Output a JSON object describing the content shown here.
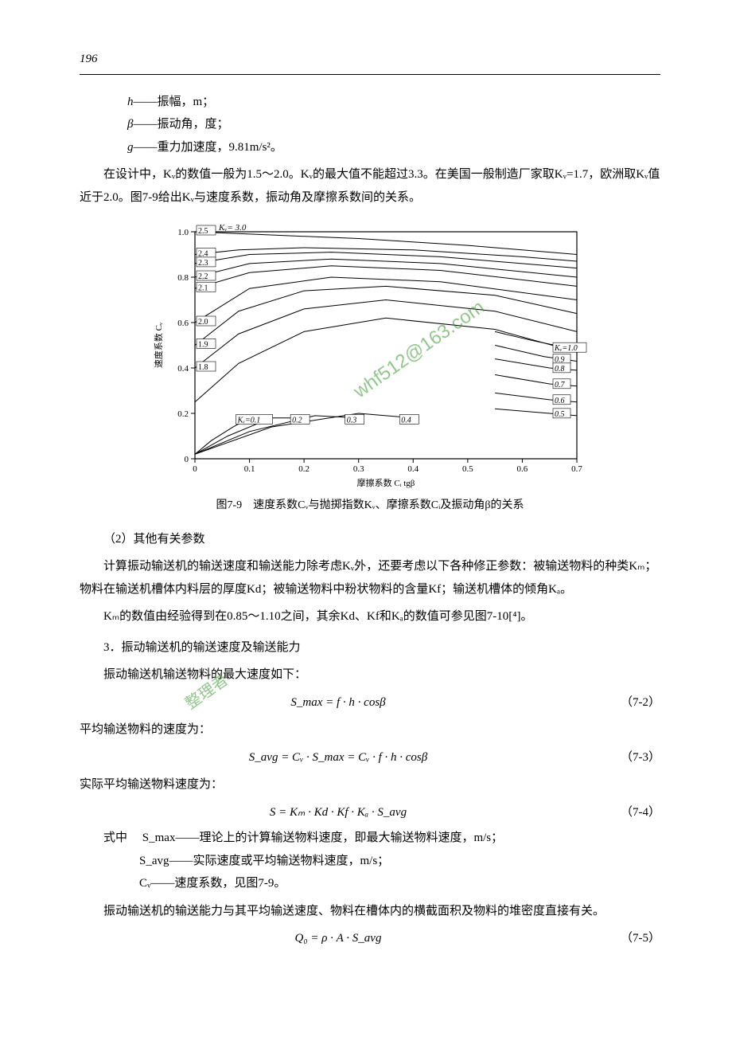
{
  "page_number": "196",
  "definitions": [
    {
      "sym": "h",
      "text": "——振幅，m；"
    },
    {
      "sym": "β",
      "text": "——振动角，度；"
    },
    {
      "sym": "g",
      "text": "——重力加速度，9.81m/s²。"
    }
  ],
  "para1": "在设计中，Kᵥ的数值一般为1.5～2.0。Kᵥ的最大值不能超过3.3。在美国一般制造厂家取Kᵥ=1.7，欧洲取Kᵥ值近于2.0。图7-9给出Kᵥ与速度系数，振动角及摩擦系数间的关系。",
  "figure": {
    "caption": "图7-9　速度系数Cᵥ与抛掷指数Kᵥ、摩擦系数Cᵢ及振动角β的关系",
    "xlabel": "摩擦系数 Cᵢ tgβ",
    "ylabel": "速度系数 Cᵥ",
    "xlim": [
      0,
      0.7
    ],
    "ylim": [
      0,
      1.0
    ],
    "xticks": [
      "0",
      "0.1",
      "0.2",
      "0.3",
      "0.4",
      "0.5",
      "0.6",
      "0.7"
    ],
    "yticks": [
      "0",
      "0.2",
      "0.4",
      "0.6",
      "0.8",
      "1.0"
    ],
    "grid_color": "#000000",
    "line_color": "#000000",
    "background_color": "#ffffff",
    "font_size_axis": 11,
    "font_size_labels": 11,
    "top_label": "Kᵥ= 3.0",
    "left_kv_labels": [
      "2.5",
      "2.4",
      "2.3",
      "2.2",
      "2.1",
      "2.0",
      "1.9",
      "1.8"
    ],
    "bottom_kv_labels": [
      "Kᵥ=0.1",
      "0.2",
      "0.3",
      "0.4"
    ],
    "right_kv_labels": [
      "Kᵥ=1.0",
      "0.9",
      "0.8",
      "0.7",
      "0.6",
      "0.5"
    ],
    "curves_kv": [
      {
        "label": "3.0",
        "pts": [
          [
            0,
            1.0
          ],
          [
            0.1,
            0.99
          ],
          [
            0.3,
            0.97
          ],
          [
            0.5,
            0.94
          ],
          [
            0.7,
            0.9
          ]
        ]
      },
      {
        "label": "2.5",
        "pts": [
          [
            0,
            0.9
          ],
          [
            0.08,
            0.92
          ],
          [
            0.2,
            0.93
          ],
          [
            0.4,
            0.92
          ],
          [
            0.6,
            0.89
          ],
          [
            0.7,
            0.87
          ]
        ]
      },
      {
        "label": "2.4",
        "pts": [
          [
            0,
            0.86
          ],
          [
            0.1,
            0.9
          ],
          [
            0.25,
            0.91
          ],
          [
            0.45,
            0.89
          ],
          [
            0.7,
            0.84
          ]
        ]
      },
      {
        "label": "2.3",
        "pts": [
          [
            0,
            0.8
          ],
          [
            0.1,
            0.86
          ],
          [
            0.25,
            0.88
          ],
          [
            0.45,
            0.86
          ],
          [
            0.7,
            0.8
          ]
        ]
      },
      {
        "label": "2.2",
        "pts": [
          [
            0,
            0.75
          ],
          [
            0.1,
            0.82
          ],
          [
            0.25,
            0.85
          ],
          [
            0.45,
            0.83
          ],
          [
            0.7,
            0.76
          ]
        ]
      },
      {
        "label": "2.1",
        "pts": [
          [
            0,
            0.6
          ],
          [
            0.1,
            0.75
          ],
          [
            0.25,
            0.8
          ],
          [
            0.45,
            0.78
          ],
          [
            0.7,
            0.7
          ]
        ]
      },
      {
        "label": "2.0",
        "pts": [
          [
            0,
            0.5
          ],
          [
            0.08,
            0.65
          ],
          [
            0.2,
            0.74
          ],
          [
            0.35,
            0.76
          ],
          [
            0.55,
            0.72
          ],
          [
            0.7,
            0.64
          ]
        ]
      },
      {
        "label": "1.9",
        "pts": [
          [
            0,
            0.4
          ],
          [
            0.08,
            0.55
          ],
          [
            0.2,
            0.66
          ],
          [
            0.35,
            0.7
          ],
          [
            0.55,
            0.65
          ],
          [
            0.7,
            0.56
          ]
        ]
      },
      {
        "label": "1.8",
        "pts": [
          [
            0,
            0.25
          ],
          [
            0.08,
            0.42
          ],
          [
            0.2,
            0.56
          ],
          [
            0.35,
            0.62
          ],
          [
            0.55,
            0.57
          ],
          [
            0.7,
            0.47
          ]
        ]
      }
    ],
    "curves_bottom": [
      {
        "label": "0.1",
        "pts": [
          [
            0,
            0.02
          ],
          [
            0.03,
            0.08
          ],
          [
            0.07,
            0.14
          ],
          [
            0.1,
            0.18
          ]
        ]
      },
      {
        "label": "0.2",
        "pts": [
          [
            0,
            0.02
          ],
          [
            0.06,
            0.1
          ],
          [
            0.14,
            0.18
          ],
          [
            0.2,
            0.18
          ]
        ]
      },
      {
        "label": "0.3",
        "pts": [
          [
            0,
            0.02
          ],
          [
            0.1,
            0.12
          ],
          [
            0.22,
            0.19
          ],
          [
            0.3,
            0.18
          ]
        ]
      },
      {
        "label": "0.4",
        "pts": [
          [
            0,
            0.02
          ],
          [
            0.14,
            0.14
          ],
          [
            0.3,
            0.2
          ],
          [
            0.4,
            0.18
          ]
        ]
      }
    ],
    "curves_right": [
      {
        "label": "1.0",
        "pts": [
          [
            0.55,
            0.56
          ],
          [
            0.62,
            0.52
          ],
          [
            0.7,
            0.48
          ]
        ]
      },
      {
        "label": "0.9",
        "pts": [
          [
            0.55,
            0.5
          ],
          [
            0.64,
            0.45
          ],
          [
            0.7,
            0.43
          ]
        ]
      },
      {
        "label": "0.8",
        "pts": [
          [
            0.55,
            0.44
          ],
          [
            0.65,
            0.4
          ],
          [
            0.7,
            0.39
          ]
        ]
      },
      {
        "label": "0.7",
        "pts": [
          [
            0.55,
            0.37
          ],
          [
            0.65,
            0.33
          ],
          [
            0.7,
            0.32
          ]
        ]
      },
      {
        "label": "0.6",
        "pts": [
          [
            0.55,
            0.29
          ],
          [
            0.65,
            0.26
          ],
          [
            0.7,
            0.25
          ]
        ]
      },
      {
        "label": "0.5",
        "pts": [
          [
            0.55,
            0.22
          ],
          [
            0.65,
            0.2
          ],
          [
            0.7,
            0.19
          ]
        ]
      }
    ]
  },
  "sec2_h": "（2）其他有关参数",
  "para2a": "计算振动输送机的输送速度和输送能力除考虑Kᵥ外，还要考虑以下各种修正参数：被输送物料的种类Kₘ；物料在输送机槽体内料层的厚度Kd；被输送物料中粉状物料的含量Kf；输送机槽体的倾角Kₐ。",
  "para2b": "Kₘ的数值由经验得到在0.85～1.10之间，其余Kd、Kf和Kₐ的数值可参见图7-10[⁴]。",
  "sec3_h": "3．振动输送机的输送速度及输送能力",
  "para3a": "振动输送机输送物料的最大速度如下：",
  "eq1": "S_max = f · h · cosβ",
  "eq1num": "（7-2）",
  "para3b": "平均输送物料的速度为：",
  "eq2": "S_avg = Cᵥ · S_max = Cᵥ · f · h · cosβ",
  "eq2num": "（7-3）",
  "para3c": "实际平均输送物料速度为：",
  "eq3": "S = Kₘ · Kd · Kf · Kₐ · S_avg",
  "eq3num": "（7-4）",
  "where_label": "式中",
  "where1": "S_max——理论上的计算输送物料速度，即最大输送物料速度，m/s；",
  "where2": "S_avg——实际速度或平均输送物料速度，m/s；",
  "where3": "Cᵥ——速度系数，见图7-9。",
  "para4": "振动输送机的输送能力与其平均输送速度、物料在槽体内的横截面积及物料的堆密度直接有关。",
  "eq4": "Q₀ = ρ · A · S_avg",
  "eq4num": "（7-5）",
  "watermark_email": "whf512@163.com",
  "watermark_text": "整理者"
}
